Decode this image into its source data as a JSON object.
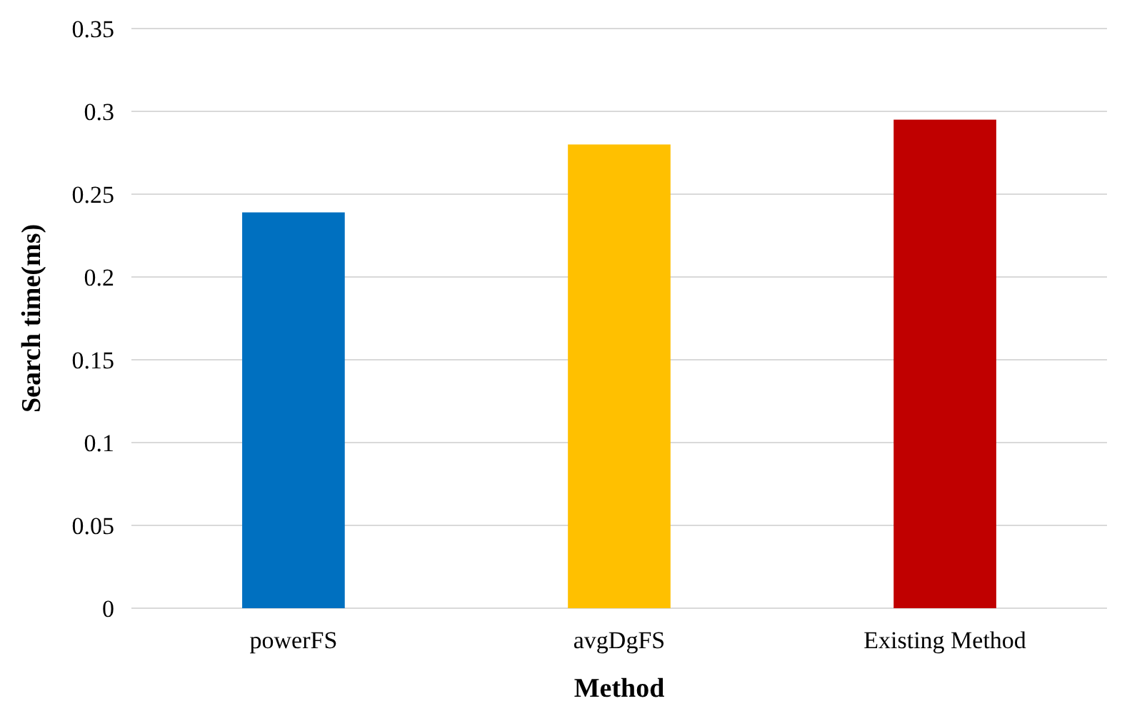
{
  "chart_data": {
    "type": "bar",
    "xlabel": "Method",
    "ylabel": "Search time(ms)",
    "categories": [
      "powerFS",
      "avgDgFS",
      "Existing Method"
    ],
    "values": [
      0.239,
      0.28,
      0.295
    ],
    "colors": [
      "#0070c0",
      "#ffc000",
      "#c00000"
    ],
    "ylim": [
      0,
      0.35
    ],
    "yticks": [
      0,
      0.05,
      0.1,
      0.15,
      0.2,
      0.25,
      0.3,
      0.35
    ],
    "grid": "y"
  }
}
